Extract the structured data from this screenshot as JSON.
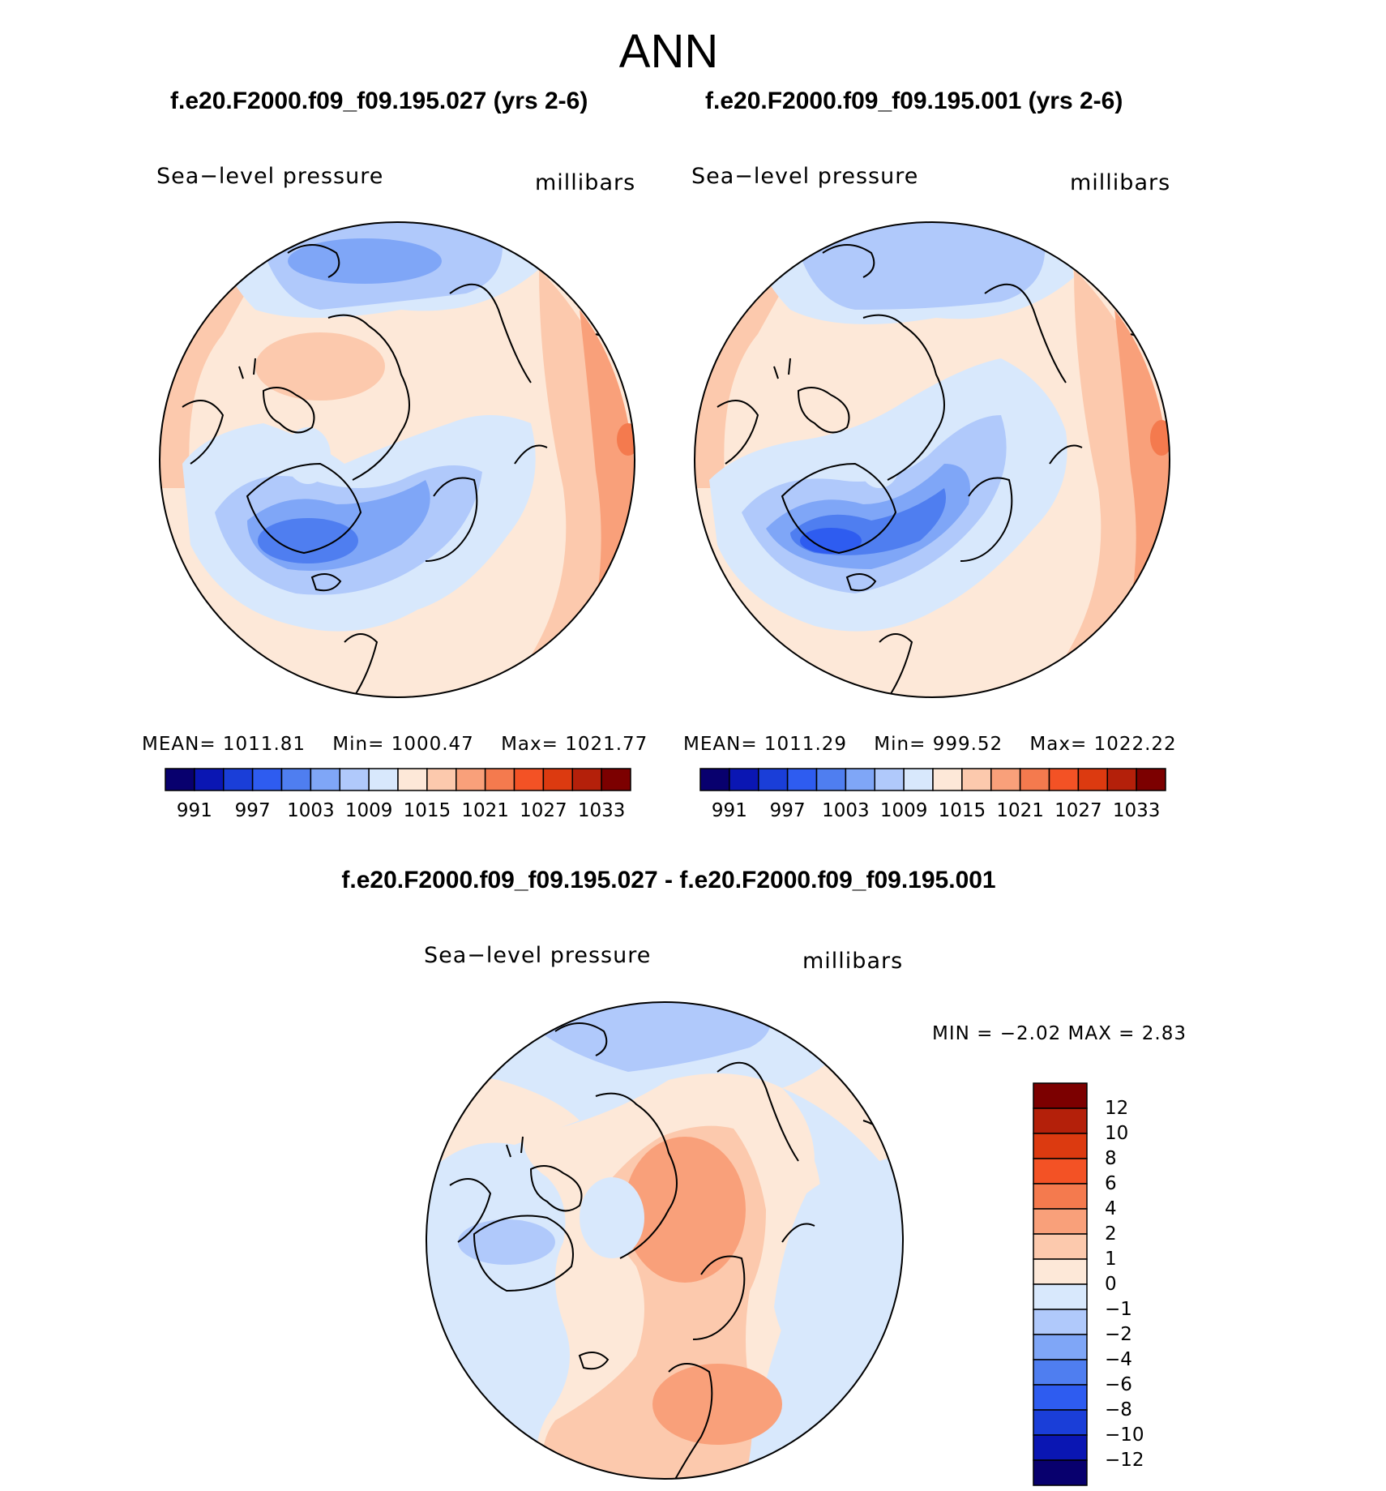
{
  "figure": {
    "title": "ANN",
    "panel_left": {
      "case": "f.e20.F2000.f09_f09.195.027 (yrs 2-6)",
      "variable": "Sea−level pressure",
      "units": "millibars",
      "mean_label": "MEAN=",
      "mean": "1011.81",
      "min_label": "Min=",
      "min": "1000.47",
      "max_label": "Max=",
      "max": "1021.77"
    },
    "panel_right": {
      "case": "f.e20.F2000.f09_f09.195.001 (yrs 2-6)",
      "variable": "Sea−level pressure",
      "units": "millibars",
      "mean_label": "MEAN=",
      "mean": "1011.29",
      "min_label": "Min=",
      "min": "999.52",
      "max_label": "Max=",
      "max": "1022.22"
    },
    "panel_diff": {
      "case": "f.e20.F2000.f09_f09.195.027 - f.e20.F2000.f09_f09.195.001",
      "variable": "Sea−level pressure",
      "units": "millibars",
      "stats": "MIN =   −2.02 MAX =    2.83"
    },
    "colorbar_abs": {
      "colors": [
        "#08006e",
        "#0a16b3",
        "#1a3ed8",
        "#2e5cf0",
        "#4f7ef0",
        "#7fa6f7",
        "#b0c9fb",
        "#d8e8fc",
        "#fde8d8",
        "#fcc9ad",
        "#f9a07a",
        "#f47a4e",
        "#f35225",
        "#dc3a10",
        "#b4200a",
        "#7c0000"
      ],
      "ticks": [
        "991",
        "997",
        "1003",
        "1009",
        "1015",
        "1021",
        "1027",
        "1033"
      ]
    },
    "colorbar_diff": {
      "colors": [
        "#7c0000",
        "#b4200a",
        "#dc3a10",
        "#f35225",
        "#f47a4e",
        "#f9a07a",
        "#fcc9ad",
        "#fde8d8",
        "#d8e8fc",
        "#b0c9fb",
        "#7fa6f7",
        "#4f7ef0",
        "#2e5cf0",
        "#1a3ed8",
        "#0a16b3",
        "#08006e"
      ],
      "ticks": [
        "12",
        "10",
        "8",
        "6",
        "4",
        "2",
        "1",
        "0",
        "−1",
        "−2",
        "−4",
        "−6",
        "−8",
        "−10",
        "−12"
      ]
    }
  }
}
